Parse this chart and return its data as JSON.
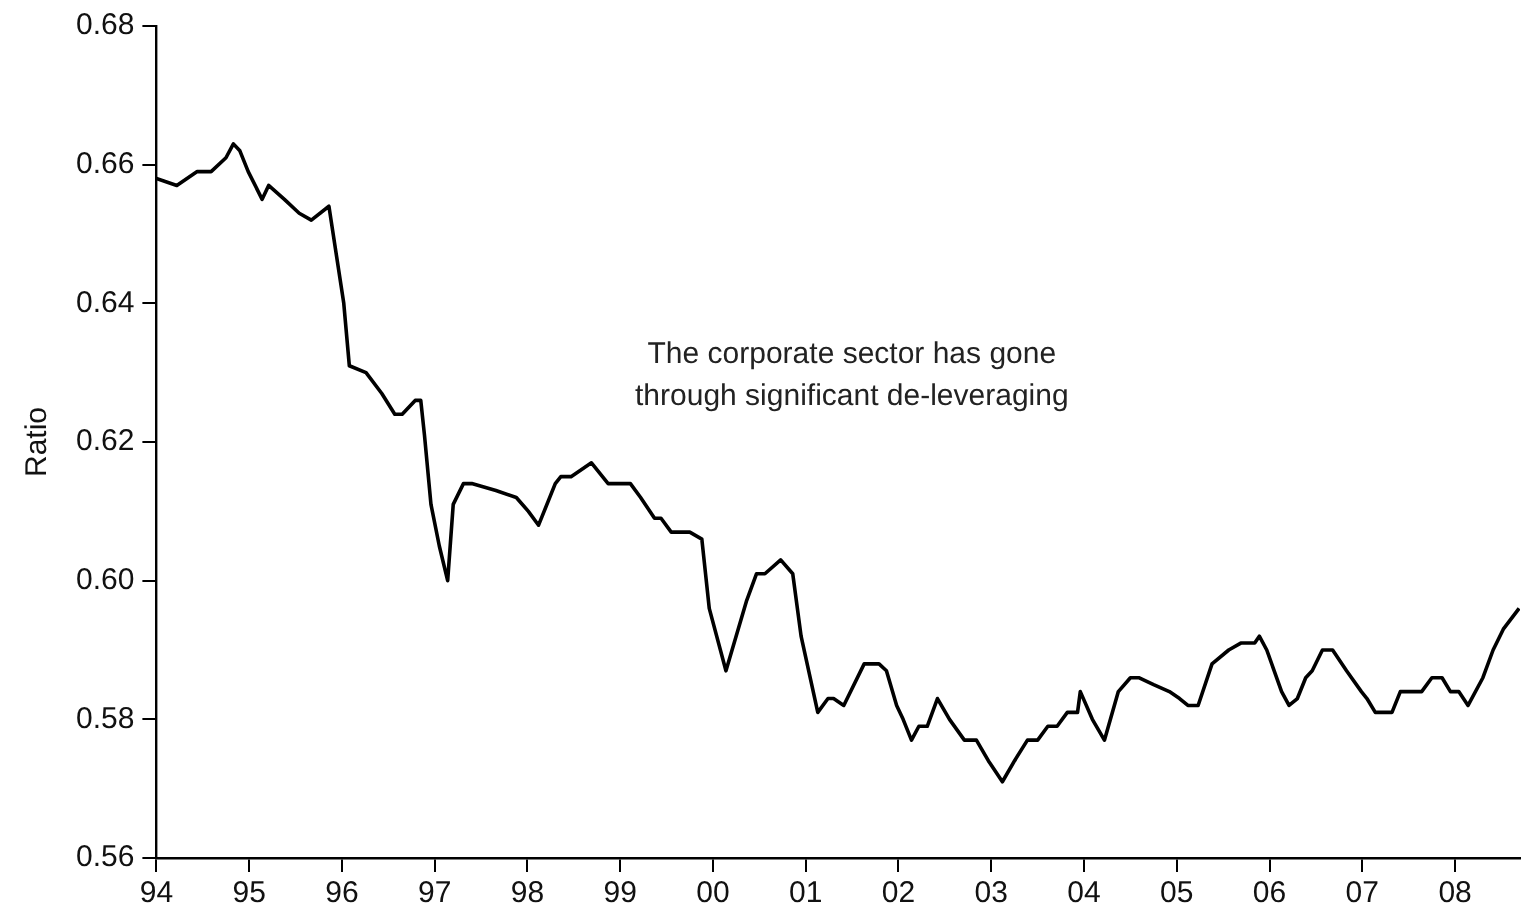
{
  "chart_data": {
    "type": "line",
    "ylabel": "Ratio",
    "annotations": [
      "The corporate sector has gone\nthrough significant de-leveraging"
    ],
    "xlim": [
      1994,
      2008.7
    ],
    "ylim": [
      0.56,
      0.68
    ],
    "xticks": [
      {
        "value": 1994,
        "label": "94"
      },
      {
        "value": 1995,
        "label": "95"
      },
      {
        "value": 1996,
        "label": "96"
      },
      {
        "value": 1997,
        "label": "97"
      },
      {
        "value": 1998,
        "label": "98"
      },
      {
        "value": 1999,
        "label": "99"
      },
      {
        "value": 2000,
        "label": "00"
      },
      {
        "value": 2001,
        "label": "01"
      },
      {
        "value": 2002,
        "label": "02"
      },
      {
        "value": 2003,
        "label": "03"
      },
      {
        "value": 2004,
        "label": "04"
      },
      {
        "value": 2005,
        "label": "05"
      },
      {
        "value": 2006,
        "label": "06"
      },
      {
        "value": 2007,
        "label": "07"
      },
      {
        "value": 2008,
        "label": "08"
      }
    ],
    "yticks": [
      {
        "value": 0.56,
        "label": "0.56"
      },
      {
        "value": 0.58,
        "label": "0.58"
      },
      {
        "value": 0.6,
        "label": "0.60"
      },
      {
        "value": 0.62,
        "label": "0.62"
      },
      {
        "value": 0.64,
        "label": "0.64"
      },
      {
        "value": 0.66,
        "label": "0.66"
      },
      {
        "value": 0.68,
        "label": "0.68"
      }
    ],
    "grid": false,
    "legend": false,
    "marker": "none",
    "line_style": "solid",
    "series": [
      {
        "color": "#000000",
        "x": [
          1994.0,
          1994.22,
          1994.44,
          1994.59,
          1994.75,
          1994.83,
          1994.9,
          1994.99,
          1995.14,
          1995.21,
          1995.38,
          1995.54,
          1995.67,
          1995.86,
          1996.02,
          1996.08,
          1996.26,
          1996.43,
          1996.57,
          1996.65,
          1996.79,
          1996.85,
          1996.89,
          1996.96,
          1997.05,
          1997.14,
          1997.2,
          1997.31,
          1997.4,
          1997.66,
          1997.88,
          1998.01,
          1998.12,
          1998.3,
          1998.36,
          1998.47,
          1998.69,
          1998.87,
          1998.98,
          1999.11,
          1999.22,
          1999.37,
          1999.44,
          1999.55,
          1999.75,
          1999.88,
          1999.96,
          2000.14,
          2000.36,
          2000.47,
          2000.56,
          2000.73,
          2000.86,
          2000.95,
          2001.13,
          2001.24,
          2001.3,
          2001.41,
          2001.63,
          2001.79,
          2001.87,
          2001.98,
          2002.05,
          2002.14,
          2002.22,
          2002.31,
          2002.42,
          2002.55,
          2002.71,
          2002.84,
          2002.97,
          2003.12,
          2003.25,
          2003.39,
          2003.5,
          2003.61,
          2003.71,
          2003.82,
          2003.93,
          2003.96,
          2004.09,
          2004.22,
          2004.37,
          2004.5,
          2004.59,
          2004.75,
          2004.92,
          2005.03,
          2005.12,
          2005.23,
          2005.38,
          2005.56,
          2005.69,
          2005.84,
          2005.89,
          2005.97,
          2006.13,
          2006.21,
          2006.3,
          2006.39,
          2006.46,
          2006.57,
          2006.68,
          2006.83,
          2006.99,
          2007.05,
          2007.14,
          2007.24,
          2007.32,
          2007.41,
          2007.54,
          2007.64,
          2007.75,
          2007.86,
          2007.95,
          2008.04,
          2008.14,
          2008.3,
          2008.41,
          2008.52,
          2008.69
        ],
        "values": [
          0.658,
          0.657,
          0.659,
          0.659,
          0.661,
          0.663,
          0.662,
          0.659,
          0.655,
          0.657,
          0.655,
          0.653,
          0.652,
          0.654,
          0.64,
          0.631,
          0.63,
          0.627,
          0.624,
          0.624,
          0.626,
          0.626,
          0.621,
          0.611,
          0.605,
          0.6,
          0.611,
          0.614,
          0.614,
          0.613,
          0.612,
          0.61,
          0.608,
          0.614,
          0.615,
          0.615,
          0.617,
          0.614,
          0.614,
          0.614,
          0.612,
          0.609,
          0.609,
          0.607,
          0.607,
          0.606,
          0.596,
          0.587,
          0.597,
          0.601,
          0.601,
          0.603,
          0.601,
          0.592,
          0.581,
          0.583,
          0.583,
          0.582,
          0.588,
          0.588,
          0.587,
          0.582,
          0.58,
          0.577,
          0.579,
          0.579,
          0.583,
          0.58,
          0.577,
          0.577,
          0.574,
          0.571,
          0.574,
          0.577,
          0.577,
          0.579,
          0.579,
          0.581,
          0.581,
          0.584,
          0.58,
          0.577,
          0.584,
          0.586,
          0.586,
          0.585,
          0.584,
          0.583,
          0.582,
          0.582,
          0.588,
          0.59,
          0.591,
          0.591,
          0.592,
          0.59,
          0.584,
          0.582,
          0.583,
          0.586,
          0.587,
          0.59,
          0.59,
          0.587,
          0.584,
          0.583,
          0.581,
          0.581,
          0.581,
          0.584,
          0.584,
          0.584,
          0.586,
          0.586,
          0.584,
          0.584,
          0.582,
          0.586,
          0.59,
          0.593,
          0.596
        ]
      }
    ]
  }
}
